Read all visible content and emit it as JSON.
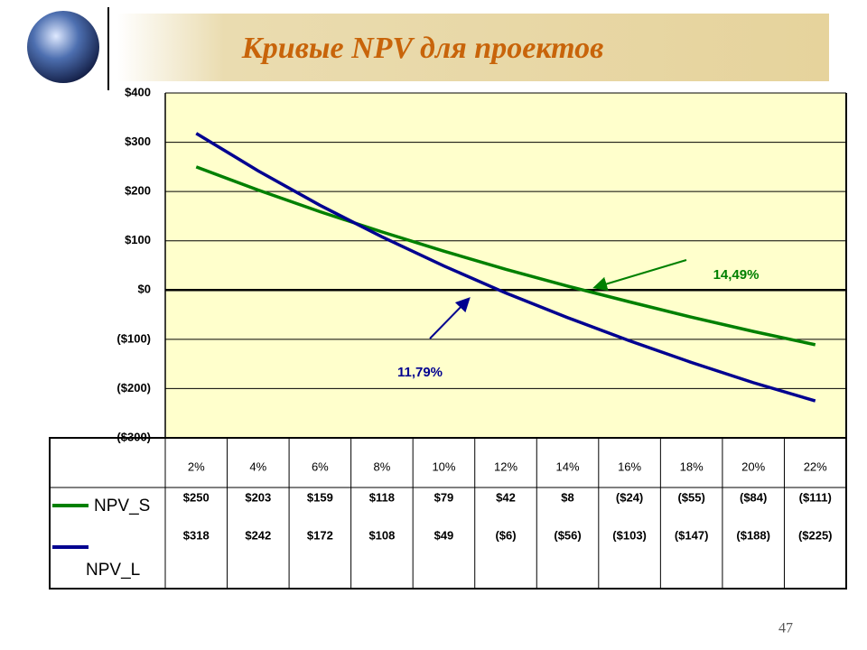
{
  "title": "Кривые NPV для проектов",
  "page_number": "47",
  "chart_data": {
    "type": "line",
    "categories": [
      "2%",
      "4%",
      "6%",
      "8%",
      "10%",
      "12%",
      "14%",
      "16%",
      "18%",
      "20%",
      "22%"
    ],
    "series": [
      {
        "name": "NPV_S",
        "color": "#008000",
        "values": [
          250,
          203,
          159,
          118,
          79,
          42,
          8,
          -24,
          -55,
          -84,
          -111
        ],
        "value_labels": [
          "$250",
          "$203",
          "$159",
          "$118",
          "$79",
          "$42",
          "$8",
          "($24)",
          "($55)",
          "($84)",
          "($111)"
        ]
      },
      {
        "name": "NPV_L",
        "color": "#000090",
        "values": [
          318,
          242,
          172,
          108,
          49,
          -6,
          -56,
          -103,
          -147,
          -188,
          -225
        ],
        "value_labels": [
          "$318",
          "$242",
          "$172",
          "$108",
          "$49",
          "($6)",
          "($56)",
          "($103)",
          "($147)",
          "($188)",
          "($225)"
        ]
      }
    ],
    "ylim": [
      -300,
      400
    ],
    "yticks": [
      {
        "value": -300,
        "label": "($300)"
      },
      {
        "value": -200,
        "label": "($200)"
      },
      {
        "value": -100,
        "label": "($100)"
      },
      {
        "value": 0,
        "label": "$0"
      },
      {
        "value": 100,
        "label": "$100"
      },
      {
        "value": 200,
        "label": "$200"
      },
      {
        "value": 300,
        "label": "$300"
      },
      {
        "value": 400,
        "label": "$400"
      }
    ],
    "grid": true,
    "annotations": [
      "14,49%",
      "11,79%"
    ]
  }
}
